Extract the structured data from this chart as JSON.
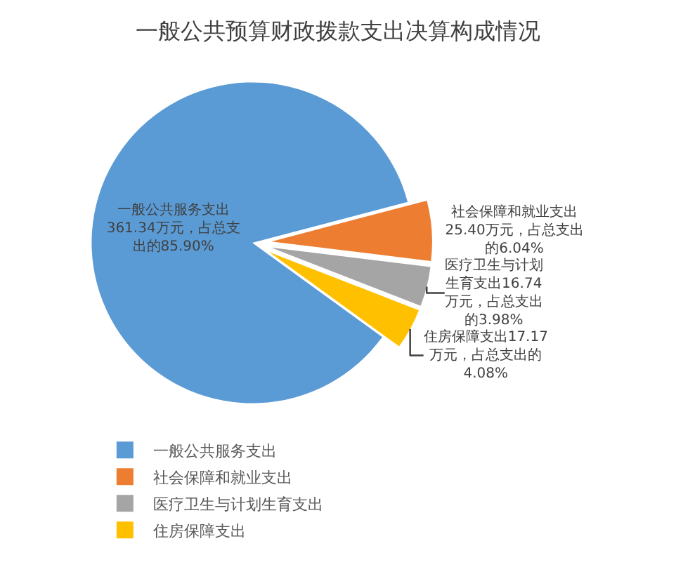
{
  "chart_data": {
    "type": "pie",
    "title": "一般公共预算财政拨款支出决算构成情况",
    "categories": [
      "一般公共服务支出",
      "社会保障和就业支出",
      "医疗卫生与计划生育支出",
      "住房保障支出"
    ],
    "values": [
      361.34,
      25.4,
      16.74,
      17.17
    ],
    "colors": [
      "#5b9bd5",
      "#ed7d31",
      "#a5a5a5",
      "#ffc000"
    ],
    "value_labels": [
      "一般公共服务支出361.34万元，占总支出的85.90%",
      "社会保障和就业支出25.40万元，占总支出的6.04%",
      "医疗卫生与计划生育支出16.74万元，占总支出的3.98%",
      "住房保障支出17.17万元，占总支出的4.08%"
    ],
    "legend": "bottom"
  }
}
